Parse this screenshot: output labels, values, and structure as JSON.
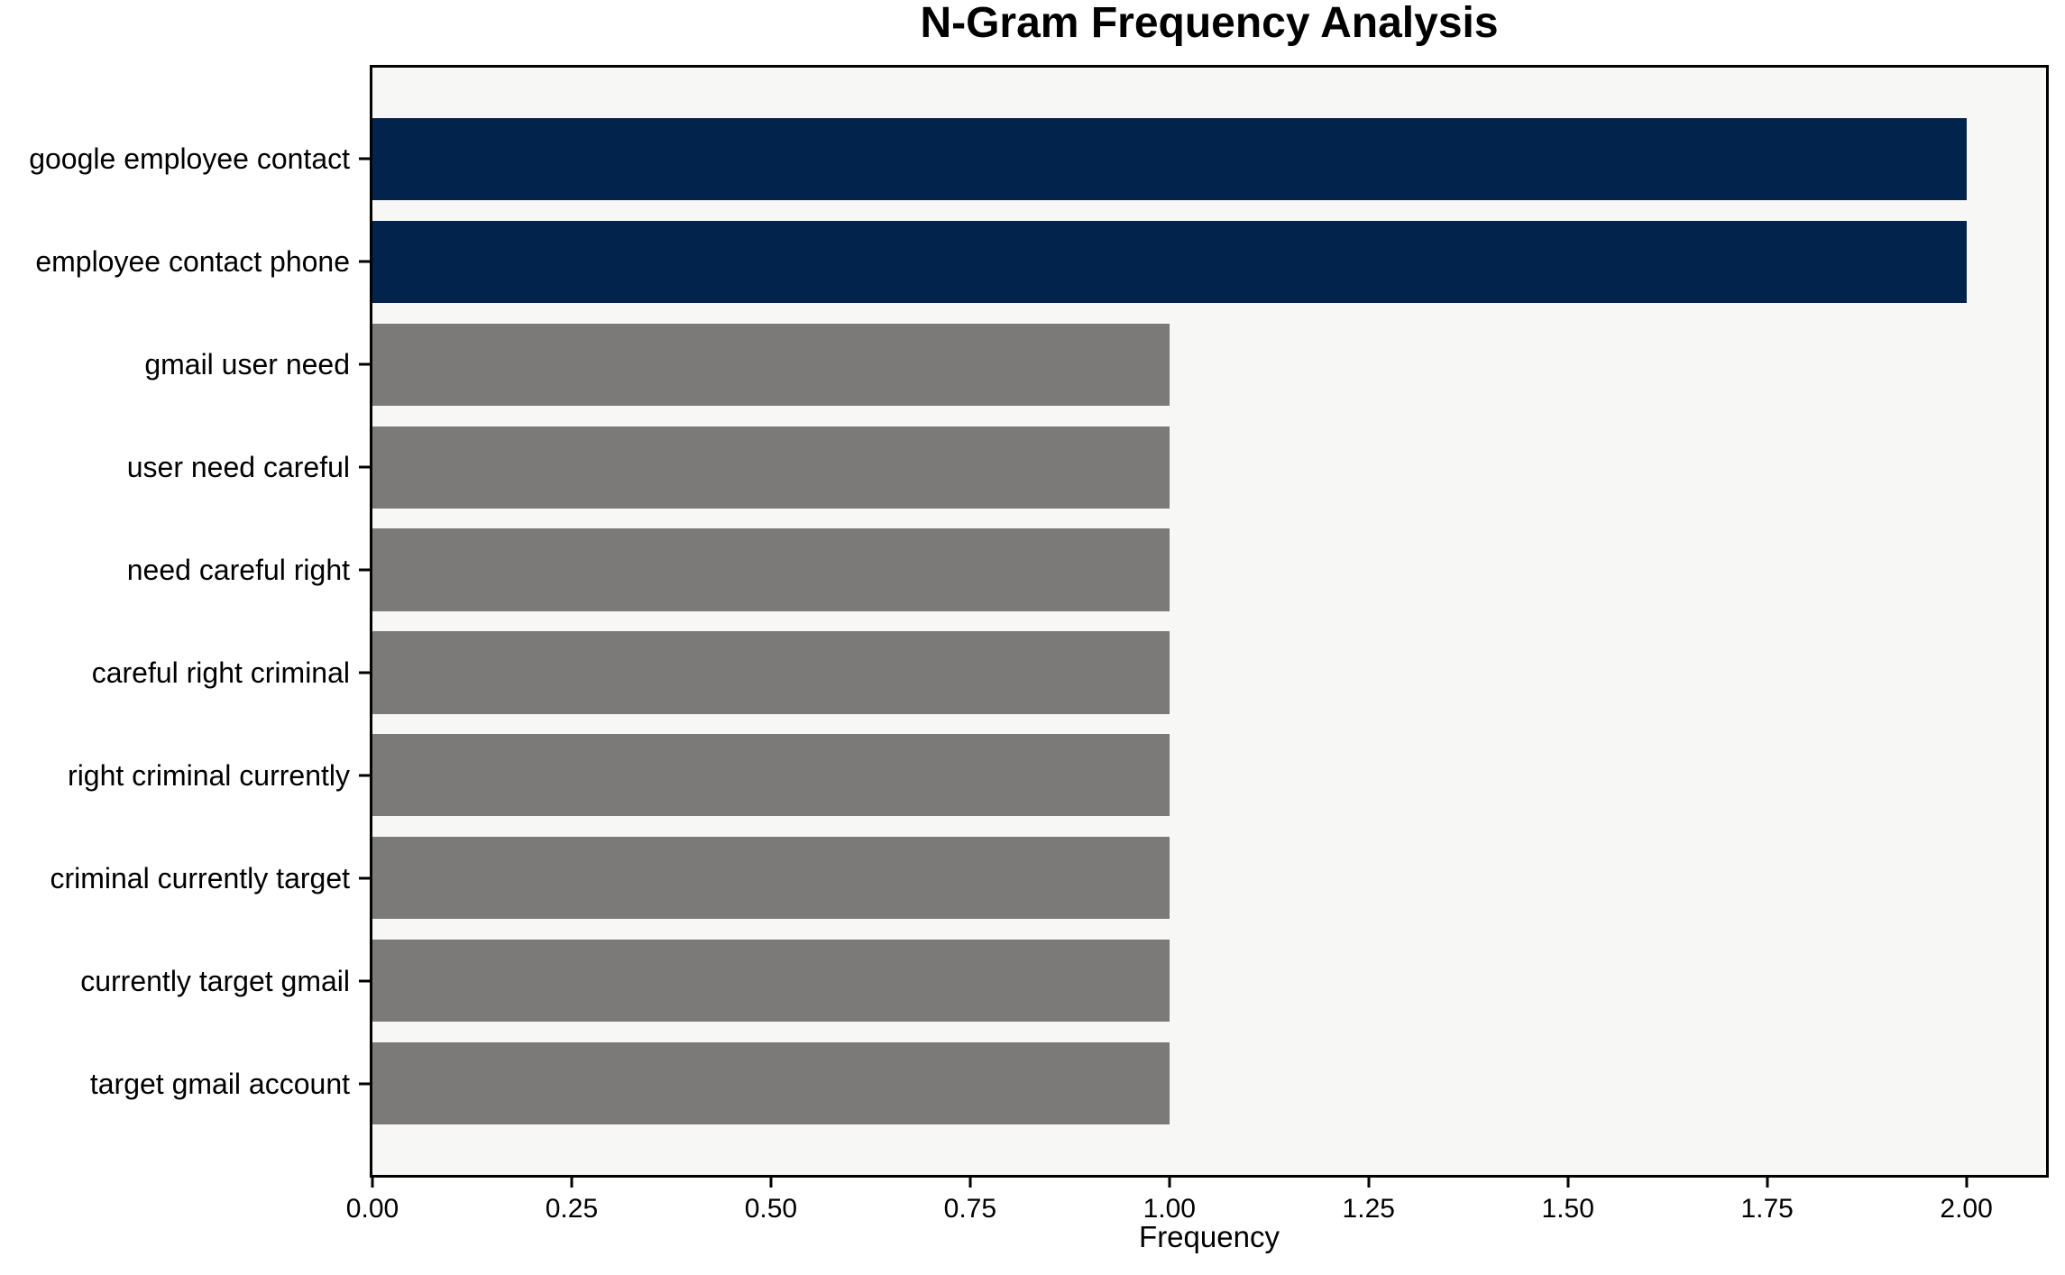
{
  "chart_data": {
    "type": "bar",
    "orientation": "horizontal",
    "title": "N-Gram Frequency Analysis",
    "xlabel": "Frequency",
    "ylabel": "",
    "categories": [
      "google employee contact",
      "employee contact phone",
      "gmail user need",
      "user need careful",
      "need careful right",
      "careful right criminal",
      "right criminal currently",
      "criminal currently target",
      "currently target gmail",
      "target gmail account"
    ],
    "values": [
      2,
      2,
      1,
      1,
      1,
      1,
      1,
      1,
      1,
      1
    ],
    "bar_colors": [
      "#02234c",
      "#02234c",
      "#7b7a78",
      "#7b7a78",
      "#7b7a78",
      "#7b7a78",
      "#7b7a78",
      "#7b7a78",
      "#7b7a78",
      "#7b7a78"
    ],
    "xlim": [
      0,
      2.1
    ],
    "xtick_values": [
      0,
      0.25,
      0.5,
      0.75,
      1.0,
      1.25,
      1.5,
      1.75,
      2.0
    ],
    "xtick_labels": [
      "0.00",
      "0.25",
      "0.50",
      "0.75",
      "1.00",
      "1.25",
      "1.50",
      "1.75",
      "2.00"
    ],
    "grid": false,
    "legend": "none",
    "plot_background": "#f7f7f5",
    "figure_background": "#ffffff",
    "spine_color": "#000000",
    "text_color": "#000000"
  }
}
